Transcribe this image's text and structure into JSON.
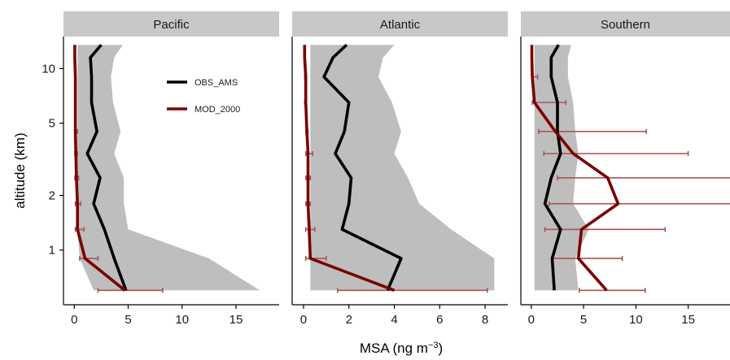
{
  "chart_data": {
    "type": "line",
    "xlabel": "MSA (ng m",
    "xlabel_superscript": "−3",
    "xlabel_suffix": ")",
    "ylabel": "altitude (km)",
    "y_scale": "log",
    "y_ticks": [
      1,
      2,
      5,
      10
    ],
    "ylim": [
      0.5,
      15
    ],
    "grid": false,
    "legend": {
      "placement": "inside top-right of Pacific panel",
      "entries": [
        {
          "name": "OBS_AMS",
          "color": "#000000"
        },
        {
          "name": "MOD_2000",
          "color": "#7a0000"
        }
      ]
    },
    "colors": {
      "obs": "#000000",
      "mod": "#7a0000",
      "errorbar": "#a85555",
      "band": "#bebebe",
      "strip": "#c8c8c8"
    },
    "panels": [
      {
        "title": "Pacific",
        "xlim": [
          -1,
          19
        ],
        "x_ticks": [
          0,
          5,
          10,
          15
        ],
        "obs": {
          "altitude": [
            0.6,
            0.9,
            1.3,
            1.8,
            2.5,
            3.4,
            4.5,
            6.5,
            9.0,
            11.5,
            13.5
          ],
          "value": [
            4.8,
            3.7,
            2.8,
            1.8,
            2.4,
            1.2,
            2.1,
            1.6,
            1.6,
            1.5,
            2.5
          ]
        },
        "mod": {
          "altitude": [
            0.6,
            0.9,
            1.3,
            1.8,
            2.5,
            3.4,
            4.5,
            6.5,
            9.0,
            11.5,
            13.5
          ],
          "value": [
            4.7,
            1.0,
            0.3,
            0.3,
            0.2,
            0.15,
            0.1,
            0.1,
            0.1,
            0.05,
            0.05
          ],
          "error_low": [
            2.2,
            0.5,
            0.1,
            0.1,
            0.05,
            0.05,
            0.05,
            0.05,
            0.05,
            0.05,
            0.05
          ],
          "error_high": [
            8.2,
            2.2,
            0.9,
            0.6,
            0.4,
            0.3,
            0.3,
            0.1,
            0.1,
            0.05,
            0.05
          ]
        },
        "band": {
          "altitude": [
            0.6,
            0.9,
            1.3,
            1.8,
            2.5,
            3.4,
            4.5,
            6.5,
            9.0,
            11.5,
            13.5
          ],
          "low": [
            1.8,
            0.5,
            0.3,
            0.3,
            0.2,
            0.2,
            0.3,
            0.3,
            0.3,
            0.3,
            0.3
          ],
          "high": [
            17.2,
            12.5,
            5.0,
            4.6,
            4.6,
            3.7,
            4.3,
            3.6,
            3.4,
            3.7,
            4.5
          ]
        }
      },
      {
        "title": "Atlantic",
        "xlim": [
          -0.5,
          9.0
        ],
        "x_ticks": [
          0,
          2,
          4,
          6,
          8
        ],
        "obs": {
          "altitude": [
            0.6,
            0.9,
            1.3,
            1.8,
            2.5,
            3.4,
            4.5,
            6.5,
            9.0,
            11.5,
            13.5
          ],
          "value": [
            3.7,
            4.3,
            1.7,
            2.0,
            2.1,
            1.4,
            1.8,
            2.0,
            0.9,
            1.3,
            1.9
          ],
          "error_low": [],
          "error_high": []
        },
        "mod": {
          "altitude": [
            0.6,
            0.9,
            1.3,
            1.8,
            2.5,
            3.4,
            4.5,
            6.5,
            9.0,
            11.5,
            13.5
          ],
          "value": [
            4.0,
            0.3,
            0.25,
            0.2,
            0.2,
            0.2,
            0.15,
            0.1,
            0.1,
            0.05,
            0.05
          ],
          "error_low": [
            1.5,
            0.1,
            0.1,
            0.1,
            0.1,
            0.1,
            0.1,
            0.05,
            0.05,
            0.05,
            0.05
          ],
          "error_high": [
            8.1,
            1.0,
            0.5,
            0.3,
            0.3,
            0.4,
            0.2,
            0.1,
            0.1,
            0.05,
            0.05
          ]
        },
        "band": {
          "altitude": [
            0.6,
            0.9,
            1.3,
            1.8,
            2.5,
            3.4,
            4.5,
            6.5,
            9.0,
            11.5,
            13.5
          ],
          "low": [
            0.3,
            0.3,
            0.3,
            0.3,
            0.3,
            0.3,
            0.3,
            0.3,
            0.3,
            0.3,
            0.3
          ],
          "high": [
            8.4,
            8.4,
            6.5,
            5.1,
            4.6,
            4.0,
            4.3,
            3.9,
            3.3,
            3.5,
            4.0
          ]
        }
      },
      {
        "title": "Southern",
        "xlim": [
          -1,
          19
        ],
        "x_ticks": [
          0,
          5,
          10,
          15
        ],
        "obs": {
          "altitude": [
            0.6,
            0.9,
            1.3,
            1.8,
            2.5,
            3.4,
            4.5,
            6.5,
            9.0,
            11.5,
            13.5
          ],
          "value": [
            2.2,
            2.0,
            2.8,
            1.3,
            1.9,
            2.8,
            2.5,
            2.5,
            1.9,
            1.9,
            2.6
          ]
        },
        "mod": {
          "altitude": [
            0.6,
            0.9,
            1.3,
            1.8,
            2.5,
            3.4,
            4.5,
            6.5,
            9.0,
            11.5,
            13.5
          ],
          "value": [
            7.2,
            4.5,
            4.8,
            8.3,
            7.3,
            4.0,
            2.3,
            0.3,
            0.1,
            0.05,
            0.05
          ],
          "error_low": [
            4.6,
            2.0,
            1.3,
            1.7,
            2.5,
            1.2,
            0.7,
            0.1,
            0.05,
            0.05,
            0.05
          ],
          "error_high": [
            10.9,
            8.7,
            12.8,
            20.0,
            20.0,
            15.0,
            11.0,
            3.3,
            0.6,
            0.05,
            0.05
          ]
        },
        "band": {
          "altitude": [
            0.6,
            0.9,
            1.3,
            1.8,
            2.5,
            3.4,
            4.5,
            6.5,
            9.0,
            11.5,
            13.5
          ],
          "low": [
            0.3,
            0.3,
            0.3,
            0.3,
            0.3,
            0.3,
            0.3,
            0.3,
            0.3,
            0.3,
            0.3
          ],
          "high": [
            4.5,
            4.2,
            5.5,
            4.0,
            4.2,
            4.5,
            4.2,
            4.0,
            3.5,
            3.5,
            3.8
          ]
        }
      }
    ]
  }
}
